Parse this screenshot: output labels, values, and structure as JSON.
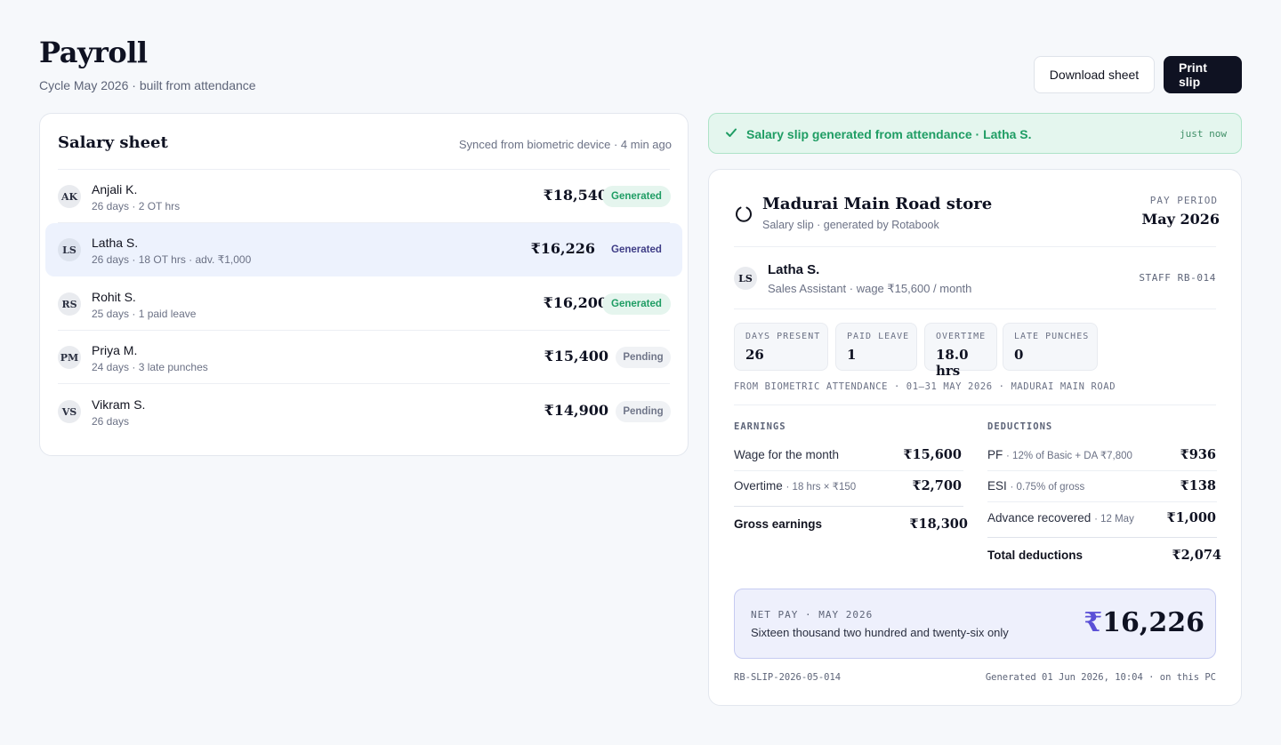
{
  "header": {
    "title": "Payroll",
    "subtitle": "Cycle May 2026 · built from attendance",
    "download_label": "Download sheet",
    "print_label": "Print slip"
  },
  "sheet": {
    "title": "Salary sheet",
    "sync_status": "Synced from biometric device · 4 min ago",
    "rows": [
      {
        "initials": "AK",
        "name": "Anjali K.",
        "meta": "26 days · 2 OT hrs",
        "amount": "₹18,540",
        "status": "Generated"
      },
      {
        "initials": "LS",
        "name": "Latha S.",
        "meta": "26 days · 18 OT hrs · adv. ₹1,000",
        "amount": "₹16,226",
        "status": "Generated"
      },
      {
        "initials": "RS",
        "name": "Rohit S.",
        "meta": "25 days · 1 paid leave",
        "amount": "₹16,200",
        "status": "Generated"
      },
      {
        "initials": "PM",
        "name": "Priya M.",
        "meta": "24 days · 3 late punches",
        "amount": "₹15,400",
        "status": "Pending"
      },
      {
        "initials": "VS",
        "name": "Vikram S.",
        "meta": "26 days",
        "amount": "₹14,900",
        "status": "Pending"
      }
    ]
  },
  "toast": {
    "message": "Salary slip generated from attendance · Latha S.",
    "time": "just now"
  },
  "slip": {
    "store_name": "Madurai Main Road store",
    "store_sub": "Salary slip · generated by Rotabook",
    "pay_period_label": "PAY PERIOD",
    "pay_period_value": "May 2026",
    "employee": {
      "initials": "LS",
      "name": "Latha S.",
      "role": "Sales Assistant · wage ₹15,600 / month",
      "staff_id": "STAFF RB-014"
    },
    "stats": [
      {
        "label": "DAYS PRESENT",
        "value": "26"
      },
      {
        "label": "PAID LEAVE",
        "value": "1"
      },
      {
        "label": "OVERTIME",
        "value": "18.0 hrs"
      },
      {
        "label": "LATE PUNCHES",
        "value": "0"
      }
    ],
    "source_line": "FROM BIOMETRIC ATTENDANCE · 01–31 MAY 2026 · MADURAI MAIN ROAD",
    "earnings": {
      "heading": "EARNINGS",
      "lines": [
        {
          "label": "Wage for the month",
          "note": "",
          "amount": "₹15,600"
        },
        {
          "label": "Overtime",
          "note": "· 18 hrs × ₹150",
          "amount": "₹2,700"
        }
      ],
      "total_label": "Gross earnings",
      "total_amount": "₹18,300"
    },
    "deductions": {
      "heading": "DEDUCTIONS",
      "lines": [
        {
          "label": "PF",
          "note": "· 12% of Basic + DA ₹7,800",
          "amount": "₹936"
        },
        {
          "label": "ESI",
          "note": "· 0.75% of gross",
          "amount": "₹138"
        },
        {
          "label": "Advance recovered",
          "note": "· 12 May",
          "amount": "₹1,000"
        }
      ],
      "total_label": "Total deductions",
      "total_amount": "₹2,074"
    },
    "net": {
      "label": "NET PAY · MAY 2026",
      "words": "Sixteen thousand two hundred and twenty-six only",
      "currency": "₹",
      "amount": "16,226"
    },
    "footer_id": "RB-SLIP-2026-05-014",
    "footer_generated": "Generated 01 Jun 2026, 10:04 · on this PC"
  }
}
